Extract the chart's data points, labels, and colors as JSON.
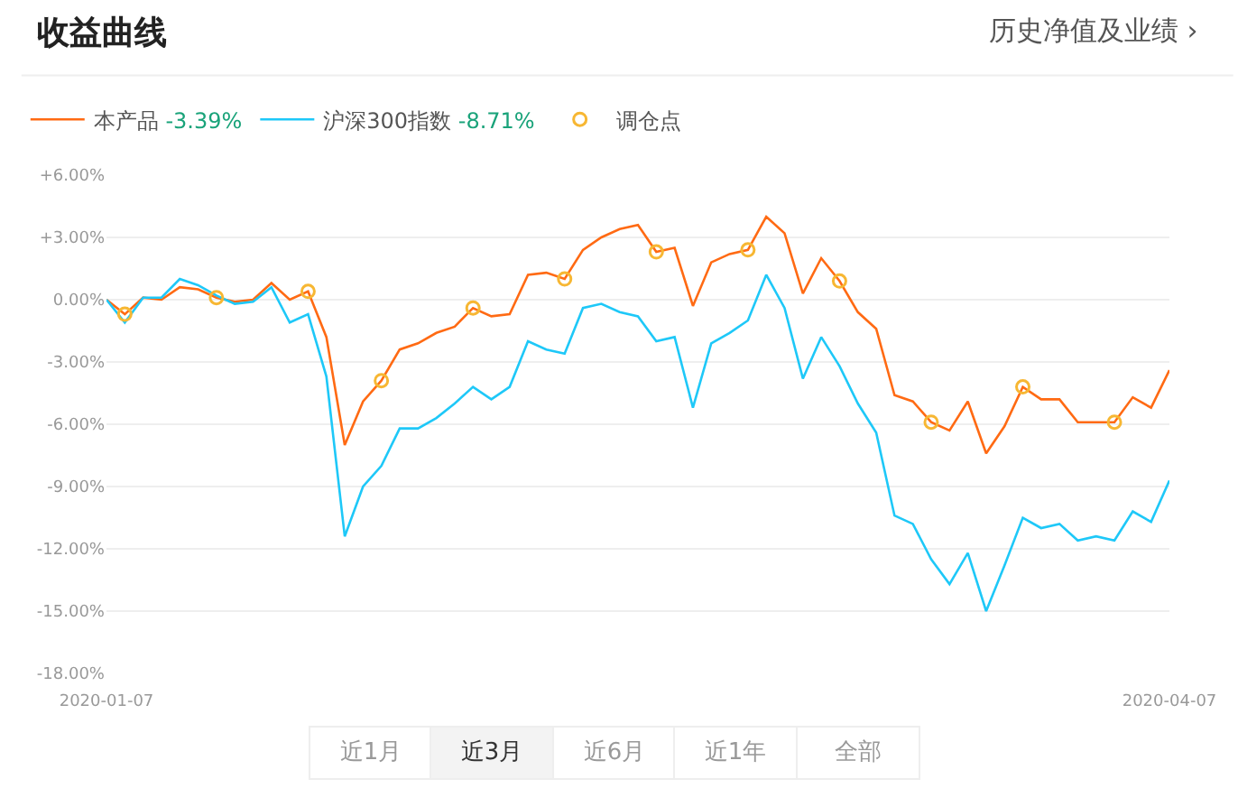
{
  "chart_data": {
    "type": "line",
    "title": "收益曲线",
    "categories": [
      "2020-01-07",
      null,
      null,
      null,
      null,
      null,
      null,
      null,
      null,
      null,
      null,
      null,
      null,
      null,
      null,
      null,
      null,
      null,
      null,
      null,
      null,
      null,
      null,
      null,
      null,
      null,
      null,
      null,
      null,
      null,
      null,
      null,
      null,
      null,
      null,
      null,
      null,
      null,
      null,
      null,
      null,
      null,
      null,
      null,
      null,
      null,
      null,
      null,
      null,
      null,
      null,
      null,
      null,
      null,
      null,
      null,
      null,
      null,
      "2020-04-07"
    ],
    "series": [
      {
        "name": "本产品",
        "color": "#ff6a13",
        "values": [
          0,
          -0.7,
          0.1,
          0,
          0.6,
          0.5,
          0.1,
          -0.1,
          0,
          0.8,
          0,
          0.4,
          -1.8,
          -7.0,
          -4.9,
          -3.9,
          -2.4,
          -2.1,
          -1.6,
          -1.3,
          -0.4,
          -0.8,
          -0.7,
          1.2,
          1.3,
          1.0,
          2.4,
          3.0,
          3.4,
          3.6,
          2.3,
          2.5,
          -0.3,
          1.8,
          2.2,
          2.4,
          4.0,
          3.2,
          0.3,
          2.0,
          0.9,
          -0.6,
          -1.4,
          -4.6,
          -4.9,
          -5.9,
          -6.3,
          -4.9,
          -7.4,
          -6.1,
          -4.2,
          -4.8,
          -4.8,
          -5.9,
          -5.9,
          -5.9,
          -4.7,
          -5.2,
          -3.39
        ]
      },
      {
        "name": "沪深300指数",
        "color": "#1ec8f8",
        "values": [
          0,
          -1.1,
          0.1,
          0.1,
          1.0,
          0.7,
          0.2,
          -0.2,
          -0.1,
          0.6,
          -1.1,
          -0.7,
          -3.7,
          -11.4,
          -9.0,
          -8.0,
          -6.2,
          -6.2,
          -5.7,
          -5.0,
          -4.2,
          -4.8,
          -4.2,
          -2.0,
          -2.4,
          -2.6,
          -0.4,
          -0.2,
          -0.6,
          -0.8,
          -2.0,
          -1.8,
          -5.2,
          -2.1,
          -1.6,
          -1.0,
          1.2,
          -0.4,
          -3.8,
          -1.8,
          -3.2,
          -5.0,
          -6.4,
          -10.4,
          -10.8,
          -12.5,
          -13.7,
          -12.2,
          -15.0,
          -12.8,
          -10.5,
          -11.0,
          -10.8,
          -11.6,
          -11.4,
          -11.6,
          -10.2,
          -10.7,
          -8.71
        ]
      },
      {
        "name": "调仓点",
        "type": "scatter",
        "marker": "circle",
        "color": "#f7b733",
        "values": [
          null,
          -0.7,
          null,
          null,
          null,
          null,
          0.1,
          null,
          null,
          null,
          null,
          0.4,
          null,
          null,
          null,
          -3.9,
          null,
          null,
          null,
          null,
          -0.4,
          null,
          null,
          null,
          null,
          1.0,
          null,
          null,
          null,
          null,
          2.3,
          null,
          null,
          null,
          null,
          2.4,
          null,
          null,
          null,
          null,
          0.9,
          null,
          null,
          null,
          null,
          -5.9,
          null,
          null,
          null,
          null,
          -4.2,
          null,
          null,
          null,
          null,
          -5.9,
          null,
          null,
          null
        ]
      }
    ],
    "ylim": [
      -18,
      6
    ],
    "yticks": [
      {
        "value": 6,
        "label": "+6.00%"
      },
      {
        "value": 3,
        "label": "+3.00%"
      },
      {
        "value": 0,
        "label": "0.00%"
      },
      {
        "value": -3,
        "label": "-3.00%"
      },
      {
        "value": -6,
        "label": "-6.00%"
      },
      {
        "value": -9,
        "label": "-9.00%"
      },
      {
        "value": -12,
        "label": "-12.00%"
      },
      {
        "value": -15,
        "label": "-15.00%"
      },
      {
        "value": -18,
        "label": "-18.00%"
      }
    ],
    "grid": "y",
    "legend": "top left",
    "annotations": [
      "历史净值及业绩 ›",
      "-3.39%",
      "-8.71%",
      "近1月",
      "近3月",
      "近6月",
      "近1年",
      "全部"
    ]
  }
}
